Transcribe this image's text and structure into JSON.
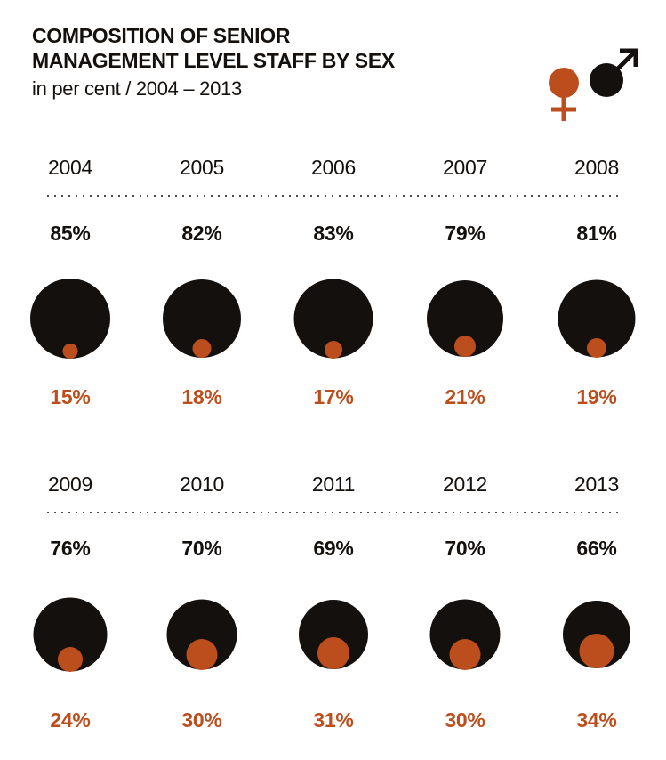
{
  "title": {
    "line1": "COMPOSITION OF SENIOR",
    "line2": "MANAGEMENT LEVEL STAFF BY SEX",
    "subtitle": "in per cent / 2004 – 2013"
  },
  "legend": {
    "female": {
      "name": "female",
      "symbol": "female-gender-symbol",
      "color": "#bc4e1d"
    },
    "male": {
      "name": "male",
      "symbol": "male-gender-symbol",
      "color": "#14100d"
    },
    "position": "top-right"
  },
  "chart_data": {
    "type": "bubble",
    "description": "Proportional circle pictogram: for each year a large black circle (male share) with a smaller orange circle (female share) tangent to its bottom edge; laid out in 2 rows of 5 years.",
    "title": "COMPOSITION OF SENIOR MANAGEMENT LEVEL STAFF BY SEX",
    "unit": "per cent",
    "categories": [
      "2004",
      "2005",
      "2006",
      "2007",
      "2008",
      "2009",
      "2010",
      "2011",
      "2012",
      "2013"
    ],
    "series": [
      {
        "name": "male",
        "color": "#14100d",
        "values": [
          85,
          82,
          83,
          79,
          81,
          76,
          70,
          69,
          70,
          66
        ]
      },
      {
        "name": "female",
        "color": "#bc4e1d",
        "values": [
          15,
          18,
          17,
          21,
          19,
          24,
          30,
          31,
          30,
          34
        ]
      }
    ],
    "rows": [
      {
        "years": [
          "2004",
          "2005",
          "2006",
          "2007",
          "2008"
        ],
        "male_labels": [
          "85%",
          "82%",
          "83%",
          "79%",
          "81%"
        ],
        "female_labels": [
          "15%",
          "18%",
          "17%",
          "21%",
          "19%"
        ]
      },
      {
        "years": [
          "2009",
          "2010",
          "2011",
          "2012",
          "2013"
        ],
        "male_labels": [
          "76%",
          "70%",
          "69%",
          "70%",
          "66%"
        ],
        "female_labels": [
          "24%",
          "30%",
          "31%",
          "30%",
          "34%"
        ]
      }
    ],
    "layout": {
      "grid": "2 rows x 5 columns",
      "separator": "dotted line between year labels and percentages",
      "legend_position": "top-right",
      "grid_on": false
    }
  },
  "colors": {
    "male_black": "#14100d",
    "female_orange": "#bc4e1d",
    "dotted_line": "#4d4d4d",
    "background": "#ffffff"
  }
}
